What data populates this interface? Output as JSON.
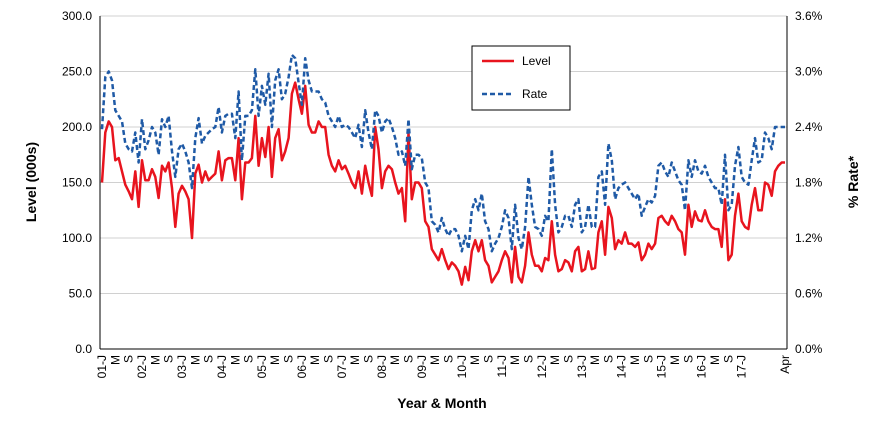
{
  "chart_data": {
    "type": "line",
    "title": "",
    "xlabel": "Year & Month",
    "ylabel_left": "Level (000s)",
    "ylabel_right": "% Rate*",
    "ylim_left": [
      0,
      300
    ],
    "ylim_right": [
      0.0,
      3.6
    ],
    "left_ticks": [
      "0.0",
      "50.0",
      "100.0",
      "150.0",
      "200.0",
      "250.0",
      "300.0"
    ],
    "right_ticks": [
      "0.0%",
      "0.6%",
      "1.2%",
      "1.8%",
      "2.4%",
      "3.0%",
      "3.6%"
    ],
    "x_tick_labels": [
      "01-J",
      "M",
      "S",
      "02-J",
      "M",
      "S",
      "03-J",
      "M",
      "S",
      "04-J",
      "M",
      "S",
      "05-J",
      "M",
      "S",
      "06-J",
      "M",
      "S",
      "07-J",
      "M",
      "S",
      "08-J",
      "M",
      "S",
      "09-J",
      "M",
      "S",
      "10-J",
      "M",
      "S",
      "11-J",
      "M",
      "S",
      "12-J",
      "M",
      "S",
      "13-J",
      "M",
      "S",
      "14-J",
      "M",
      "S",
      "15-J",
      "M",
      "S",
      "16-J",
      "M",
      "S",
      "17-J",
      "Apr"
    ],
    "x_period": "Jan 2001 – Apr 2017 (monthly)",
    "grid": true,
    "legend_position": "top-center-right",
    "colors": {
      "level": "#e8141e",
      "rate": "#1f5aa6"
    },
    "series": [
      {
        "name": "Level",
        "axis": "left",
        "style": "solid",
        "values": [
          150,
          195,
          205,
          200,
          170,
          172,
          160,
          148,
          142,
          135,
          160,
          128,
          170,
          152,
          152,
          162,
          155,
          136,
          165,
          160,
          168,
          145,
          110,
          140,
          147,
          142,
          135,
          100,
          158,
          166,
          150,
          160,
          152,
          155,
          158,
          178,
          152,
          170,
          172,
          172,
          152,
          190,
          135,
          168,
          168,
          172,
          210,
          165,
          190,
          173,
          200,
          155,
          190,
          198,
          170,
          178,
          190,
          230,
          240,
          225,
          212,
          237,
          202,
          195,
          195,
          205,
          200,
          200,
          175,
          165,
          160,
          170,
          162,
          165,
          158,
          150,
          145,
          160,
          140,
          165,
          150,
          138,
          200,
          180,
          145,
          160,
          165,
          162,
          150,
          140,
          145,
          115,
          195,
          135,
          150,
          150,
          145,
          115,
          110,
          90,
          85,
          80,
          90,
          80,
          72,
          78,
          75,
          70,
          58,
          74,
          62,
          88,
          98,
          88,
          98,
          80,
          75,
          60,
          65,
          70,
          80,
          88,
          82,
          60,
          92,
          65,
          60,
          75,
          105,
          85,
          75,
          75,
          70,
          82,
          80,
          115,
          85,
          70,
          72,
          80,
          78,
          70,
          88,
          92,
          70,
          72,
          88,
          72,
          73,
          105,
          115,
          85,
          128,
          118,
          90,
          98,
          95,
          105,
          95,
          95,
          92,
          96,
          80,
          85,
          95,
          90,
          95,
          118,
          120,
          115,
          112,
          120,
          115,
          108,
          105,
          85,
          130,
          110,
          124,
          116,
          115,
          125,
          115,
          110,
          108,
          108,
          92,
          135,
          80,
          85,
          120,
          140,
          115,
          110,
          108,
          130,
          145,
          125,
          125,
          150,
          148,
          138,
          160,
          165,
          168,
          168
        ]
      },
      {
        "name": "Rate",
        "axis": "left",
        "style": "dashed",
        "values": [
          198,
          245,
          250,
          242,
          215,
          210,
          205,
          185,
          180,
          178,
          195,
          168,
          207,
          180,
          188,
          200,
          195,
          175,
          207,
          200,
          210,
          178,
          155,
          180,
          185,
          178,
          168,
          145,
          190,
          208,
          185,
          192,
          195,
          198,
          200,
          218,
          195,
          210,
          212,
          212,
          190,
          232,
          170,
          210,
          210,
          215,
          252,
          210,
          237,
          220,
          248,
          200,
          242,
          252,
          225,
          230,
          245,
          265,
          262,
          240,
          220,
          262,
          242,
          232,
          232,
          232,
          225,
          222,
          210,
          205,
          200,
          210,
          200,
          202,
          200,
          195,
          190,
          202,
          182,
          215,
          195,
          180,
          215,
          210,
          195,
          205,
          208,
          200,
          190,
          175,
          178,
          165,
          207,
          162,
          175,
          175,
          172,
          150,
          145,
          115,
          112,
          105,
          118,
          108,
          102,
          108,
          108,
          102,
          88,
          102,
          90,
          125,
          135,
          125,
          140,
          115,
          108,
          88,
          95,
          100,
          110,
          125,
          118,
          90,
          130,
          100,
          90,
          110,
          155,
          130,
          110,
          108,
          102,
          120,
          115,
          180,
          130,
          105,
          110,
          120,
          120,
          110,
          130,
          135,
          105,
          110,
          130,
          110,
          110,
          155,
          160,
          130,
          185,
          170,
          135,
          145,
          148,
          150,
          145,
          140,
          135,
          140,
          120,
          128,
          135,
          132,
          138,
          165,
          168,
          160,
          155,
          168,
          160,
          152,
          148,
          125,
          170,
          155,
          170,
          160,
          158,
          165,
          155,
          150,
          145,
          145,
          130,
          175,
          125,
          130,
          165,
          182,
          155,
          150,
          148,
          170,
          190,
          168,
          170,
          195,
          190,
          180,
          200,
          200,
          200,
          200
        ]
      }
    ]
  }
}
